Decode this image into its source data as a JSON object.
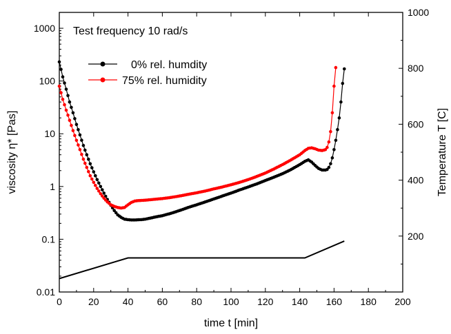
{
  "chart_data": {
    "type": "line",
    "title": "",
    "annotation": "Test frequency 10 rad/s",
    "xlabel": "time t [min]",
    "ylabel": "viscosity η* [Pas]",
    "ylabel_right": "Temperature T [C]",
    "xlim": [
      0,
      200
    ],
    "ylim": [
      0.01,
      2000
    ],
    "yscale": "log",
    "ylim_right": [
      0,
      1000
    ],
    "x_ticks": [
      0,
      20,
      40,
      60,
      80,
      100,
      120,
      140,
      160,
      180,
      200
    ],
    "y_ticks": [
      0.01,
      0.1,
      1,
      10,
      100,
      1000
    ],
    "y_tick_labels": [
      "0.01",
      "0.1",
      "1",
      "10",
      "100",
      "1000"
    ],
    "y_right_ticks": [
      200,
      400,
      600,
      800,
      1000
    ],
    "grid": false,
    "legend_position": "top-left",
    "series": [
      {
        "name": "0% rel. humdity",
        "color": "#000000",
        "axis": "left",
        "marker": "circle",
        "x": [
          0,
          2,
          4,
          6,
          8,
          10,
          12,
          14,
          16,
          18,
          20,
          22,
          24,
          26,
          28,
          30,
          32,
          34,
          36,
          38,
          40,
          42,
          44,
          46,
          48,
          50,
          55,
          60,
          65,
          70,
          75,
          80,
          85,
          90,
          95,
          100,
          105,
          110,
          115,
          120,
          125,
          130,
          135,
          140,
          143,
          145,
          147,
          149,
          151,
          153,
          155,
          156,
          157,
          158,
          159,
          160,
          161,
          162,
          163,
          164,
          165,
          166
        ],
        "y": [
          230,
          120,
          70,
          40,
          25,
          15,
          9.5,
          6,
          4,
          2.7,
          1.9,
          1.35,
          1,
          0.75,
          0.57,
          0.44,
          0.35,
          0.29,
          0.26,
          0.24,
          0.235,
          0.232,
          0.232,
          0.234,
          0.236,
          0.24,
          0.26,
          0.28,
          0.31,
          0.35,
          0.4,
          0.45,
          0.51,
          0.58,
          0.66,
          0.75,
          0.86,
          0.98,
          1.12,
          1.3,
          1.5,
          1.75,
          2.1,
          2.6,
          3.0,
          3.2,
          2.9,
          2.5,
          2.2,
          2.05,
          2.05,
          2.1,
          2.3,
          2.7,
          3.5,
          5,
          7.5,
          12,
          20,
          40,
          90,
          170
        ]
      },
      {
        "name": "75% rel. humidity",
        "color": "#ff0000",
        "axis": "left",
        "marker": "circle",
        "x": [
          0,
          2,
          4,
          6,
          8,
          10,
          12,
          14,
          16,
          18,
          20,
          22,
          24,
          26,
          28,
          30,
          32,
          34,
          36,
          38,
          40,
          42,
          44,
          46,
          50,
          55,
          60,
          65,
          70,
          75,
          80,
          85,
          90,
          95,
          100,
          105,
          110,
          115,
          120,
          125,
          130,
          135,
          140,
          143,
          145,
          147,
          149,
          151,
          153,
          155,
          156,
          157,
          158,
          159,
          160,
          161
        ],
        "y": [
          80,
          45,
          28,
          18,
          11.5,
          7.5,
          5,
          3.3,
          2.3,
          1.6,
          1.2,
          0.92,
          0.73,
          0.6,
          0.51,
          0.45,
          0.42,
          0.4,
          0.39,
          0.4,
          0.45,
          0.5,
          0.53,
          0.54,
          0.55,
          0.57,
          0.59,
          0.62,
          0.66,
          0.71,
          0.76,
          0.82,
          0.9,
          0.98,
          1.08,
          1.2,
          1.35,
          1.55,
          1.8,
          2.15,
          2.6,
          3.2,
          4.0,
          4.8,
          5.3,
          5.4,
          5.2,
          4.9,
          4.8,
          5.0,
          5.5,
          7,
          11,
          25,
          80,
          180
        ]
      },
      {
        "name": "Temperature",
        "color": "#000000",
        "axis": "right",
        "marker": "none",
        "x": [
          0,
          40,
          143,
          166
        ],
        "y": [
          48,
          122,
          122,
          182
        ]
      }
    ]
  }
}
